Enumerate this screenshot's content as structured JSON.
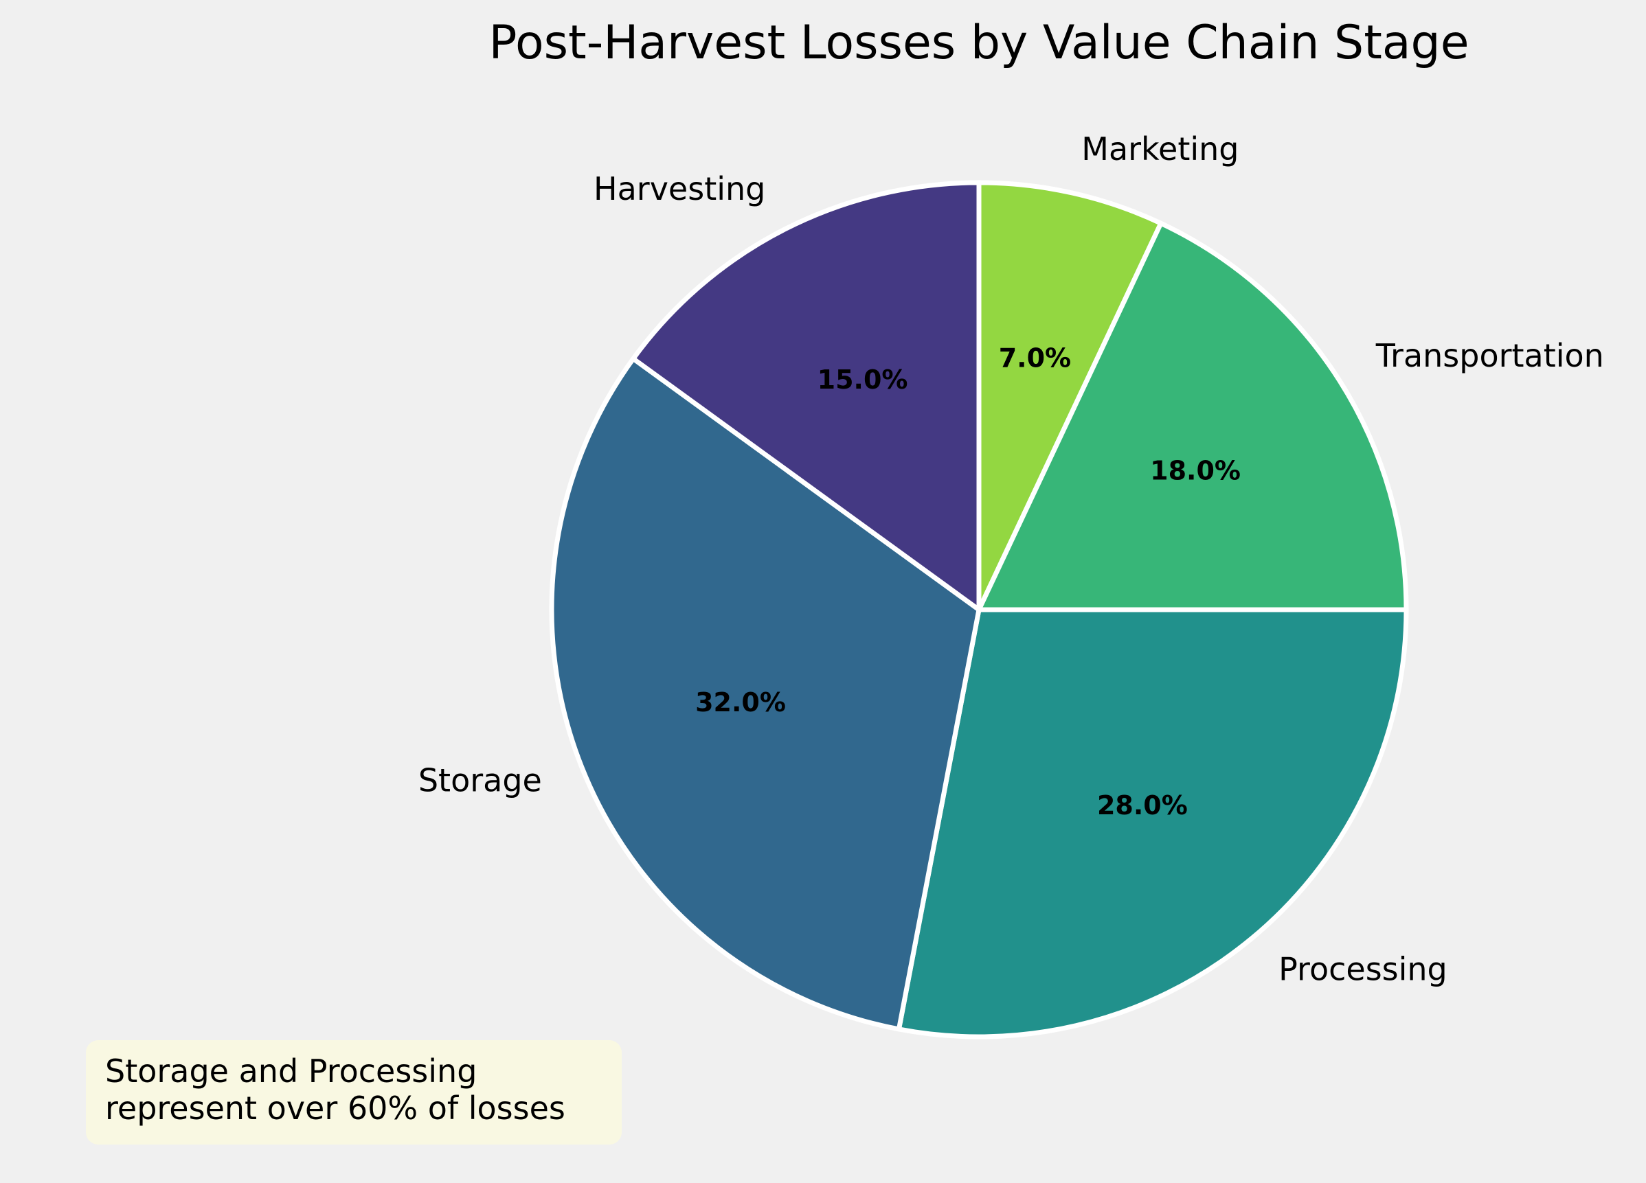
{
  "chart_data": {
    "type": "pie",
    "title": "Post-Harvest Losses by Value Chain Stage",
    "start_angle_deg": 90,
    "direction": "clockwise",
    "slices": [
      {
        "label": "Marketing",
        "value": 7.0,
        "pct_label": "7.0%",
        "color": "#93d741"
      },
      {
        "label": "Transportation",
        "value": 18.0,
        "pct_label": "18.0%",
        "color": "#37b678"
      },
      {
        "label": "Processing",
        "value": 28.0,
        "pct_label": "28.0%",
        "color": "#21918c"
      },
      {
        "label": "Storage",
        "value": 32.0,
        "pct_label": "32.0%",
        "color": "#31688e"
      },
      {
        "label": "Harvesting",
        "value": 15.0,
        "pct_label": "15.0%",
        "color": "#443983"
      }
    ],
    "annotation": "Storage and Processing\nrepresent over 60% of losses",
    "wedge_edge_color": "#ffffff",
    "background": "#f0f0f0",
    "annotation_background": "#f9f8e2"
  }
}
